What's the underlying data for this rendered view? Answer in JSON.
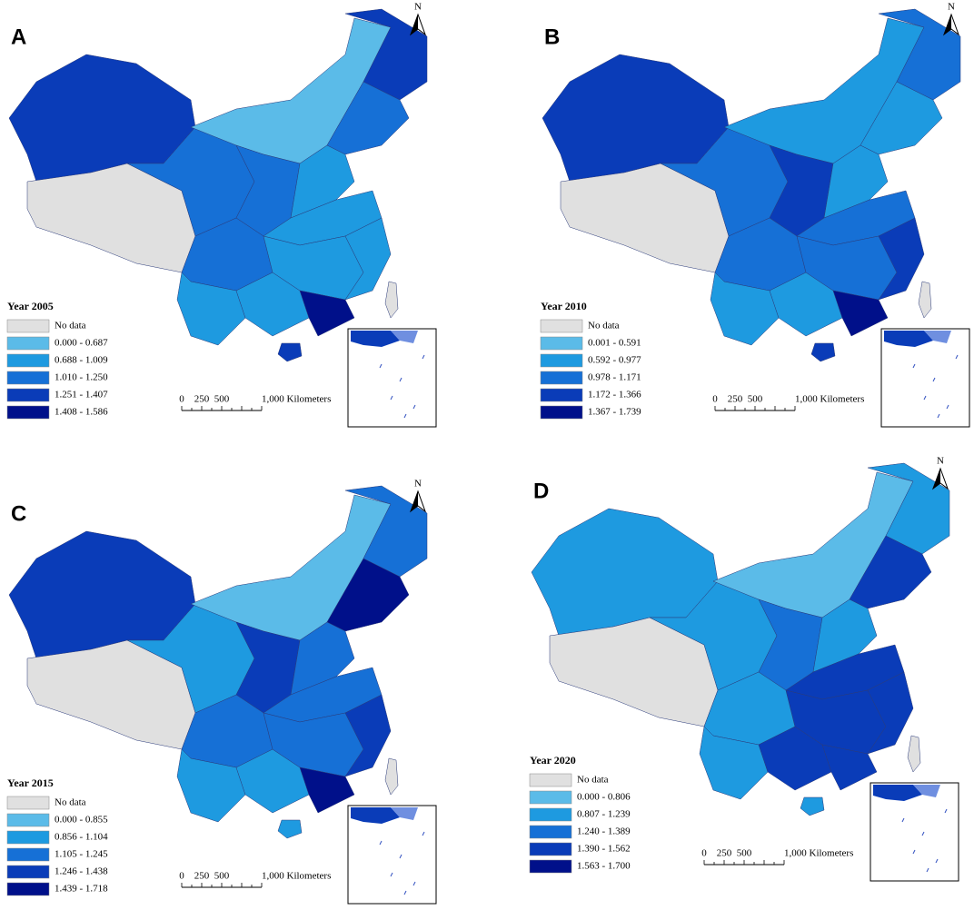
{
  "panels": [
    {
      "letter": "A",
      "year": "Year 2005",
      "north": "N",
      "legend": [
        {
          "label": "No data",
          "color": "#e0e0e0"
        },
        {
          "label": "0.000 - 0.687",
          "color": "#5bbbe8"
        },
        {
          "label": "0.688 - 1.009",
          "color": "#1e9ae0"
        },
        {
          "label": "1.010 - 1.250",
          "color": "#1670d6"
        },
        {
          "label": "1.251 - 1.407",
          "color": "#0a3cb8"
        },
        {
          "label": "1.408 - 1.586",
          "color": "#00108a"
        }
      ],
      "scale": [
        "0",
        "250",
        "500",
        "1,000 Kilometers"
      ]
    },
    {
      "letter": "B",
      "year": "Year 2010",
      "north": "N",
      "legend": [
        {
          "label": "No data",
          "color": "#e0e0e0"
        },
        {
          "label": "0.001 - 0.591",
          "color": "#5bbbe8"
        },
        {
          "label": "0.592 - 0.977",
          "color": "#1e9ae0"
        },
        {
          "label": "0.978 - 1.171",
          "color": "#1670d6"
        },
        {
          "label": "1.172 - 1.366",
          "color": "#0a3cb8"
        },
        {
          "label": "1.367 - 1.739",
          "color": "#00108a"
        }
      ],
      "scale": [
        "0",
        "250",
        "500",
        "1,000 Kilometers"
      ]
    },
    {
      "letter": "C",
      "year": "Year 2015",
      "north": "N",
      "legend": [
        {
          "label": "No data",
          "color": "#e0e0e0"
        },
        {
          "label": "0.000 - 0.855",
          "color": "#5bbbe8"
        },
        {
          "label": "0.856 - 1.104",
          "color": "#1e9ae0"
        },
        {
          "label": "1.105 - 1.245",
          "color": "#1670d6"
        },
        {
          "label": "1.246 - 1.438",
          "color": "#0a3cb8"
        },
        {
          "label": "1.439 - 1.718",
          "color": "#00108a"
        }
      ],
      "scale": [
        "0",
        "250",
        "500",
        "1,000 Kilometers"
      ]
    },
    {
      "letter": "D",
      "year": "Year 2020",
      "north": "N",
      "legend": [
        {
          "label": "No data",
          "color": "#e0e0e0"
        },
        {
          "label": "0.000 - 0.806",
          "color": "#5bbbe8"
        },
        {
          "label": "0.807 - 1.239",
          "color": "#1e9ae0"
        },
        {
          "label": "1.240 - 1.389",
          "color": "#1670d6"
        },
        {
          "label": "1.390 - 1.562",
          "color": "#0a3cb8"
        },
        {
          "label": "1.563 - 1.700",
          "color": "#00108a"
        }
      ],
      "scale": [
        "0",
        "250",
        "500",
        "1,000 Kilometers"
      ]
    }
  ]
}
